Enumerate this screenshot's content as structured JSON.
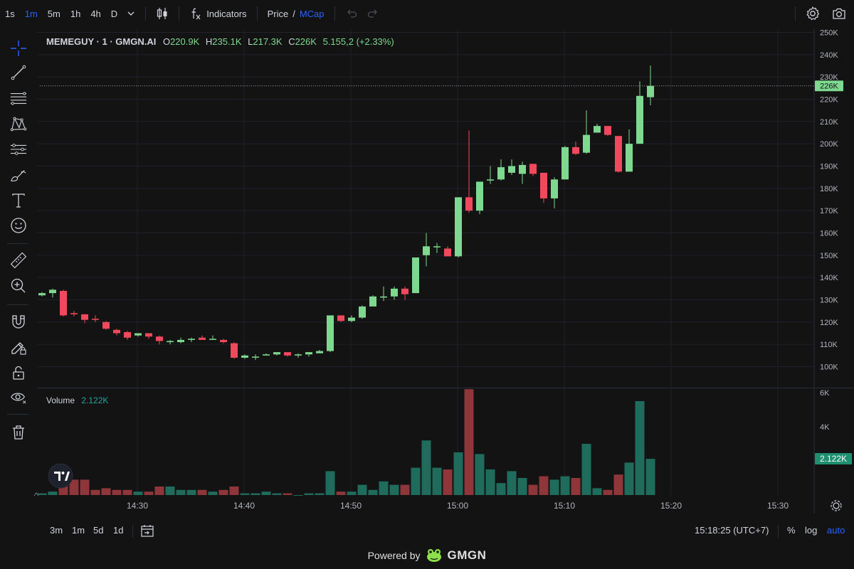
{
  "toolbar": {
    "timeframes": [
      "1s",
      "1m",
      "5m",
      "1h",
      "4h",
      "D"
    ],
    "active_timeframe": "1m",
    "indicators_label": "Indicators",
    "price_label": "Price",
    "slash": "/",
    "mcap_label": "MCap"
  },
  "legend": {
    "symbol": "MEMEGUY · 1 · GMGN.AI",
    "open_key": "O",
    "open": "220.9K",
    "high_key": "H",
    "high": "235.1K",
    "low_key": "L",
    "low": "217.3K",
    "close_key": "C",
    "close": "226K",
    "change": "5.155,2 (+2.33%)"
  },
  "volume_legend": {
    "label": "Volume",
    "value": "2.122K"
  },
  "colors": {
    "up": "#7fd88f",
    "down": "#f0485c",
    "vol_up": "#1f6b5c",
    "vol_down": "#8e3639",
    "accent": "#2962ff"
  },
  "chart_data": {
    "type": "candlestick",
    "x_ticks": [
      "14:30",
      "14:40",
      "14:50",
      "15:00",
      "15:10",
      "15:20",
      "15:30"
    ],
    "y_ticks": [
      "100K",
      "110K",
      "120K",
      "130K",
      "140K",
      "150K",
      "160K",
      "170K",
      "180K",
      "190K",
      "200K",
      "210K",
      "220K",
      "230K",
      "240K",
      "250K"
    ],
    "ylim": [
      100,
      250
    ],
    "price_label": "226K",
    "volume_ticks": [
      "4K",
      "6K"
    ],
    "volume_label": "2.122K",
    "candles": [
      {
        "t": "14:22",
        "o": 132,
        "h": 133.5,
        "l": 131.5,
        "c": 133,
        "v": 0.1
      },
      {
        "t": "14:23",
        "o": 133,
        "h": 135,
        "l": 131,
        "c": 134.5,
        "v": 0.2
      },
      {
        "t": "14:24",
        "o": 134,
        "h": 134.5,
        "l": 122.5,
        "c": 123,
        "v": 0.7
      },
      {
        "t": "14:25",
        "o": 124,
        "h": 125,
        "l": 122.5,
        "c": 123.5,
        "v": 0.9
      },
      {
        "t": "14:26",
        "o": 123.5,
        "h": 123.5,
        "l": 119.5,
        "c": 121,
        "v": 0.9
      },
      {
        "t": "14:27",
        "o": 121.5,
        "h": 123,
        "l": 120,
        "c": 121,
        "v": 0.3
      },
      {
        "t": "14:28",
        "o": 120,
        "h": 120.5,
        "l": 116.5,
        "c": 117,
        "v": 0.4
      },
      {
        "t": "14:29",
        "o": 116.5,
        "h": 117,
        "l": 114,
        "c": 115,
        "v": 0.3
      },
      {
        "t": "14:30",
        "o": 115.5,
        "h": 116,
        "l": 112,
        "c": 113,
        "v": 0.3
      },
      {
        "t": "14:31",
        "o": 114,
        "h": 115,
        "l": 113.5,
        "c": 115,
        "v": 0.2
      },
      {
        "t": "14:32",
        "o": 115,
        "h": 115,
        "l": 112.5,
        "c": 113.5,
        "v": 0.2
      },
      {
        "t": "14:33",
        "o": 113.5,
        "h": 114,
        "l": 110,
        "c": 111.5,
        "v": 0.5
      },
      {
        "t": "14:34",
        "o": 111,
        "h": 112,
        "l": 110,
        "c": 111.5,
        "v": 0.5
      },
      {
        "t": "14:35",
        "o": 111,
        "h": 113,
        "l": 110.5,
        "c": 112,
        "v": 0.3
      },
      {
        "t": "14:36",
        "o": 112,
        "h": 113,
        "l": 111,
        "c": 112.5,
        "v": 0.3
      },
      {
        "t": "14:37",
        "o": 113,
        "h": 114,
        "l": 112,
        "c": 112,
        "v": 0.3
      },
      {
        "t": "14:38",
        "o": 112.5,
        "h": 114,
        "l": 112,
        "c": 112.5,
        "v": 0.2
      },
      {
        "t": "14:39",
        "o": 112,
        "h": 112.5,
        "l": 110.5,
        "c": 111,
        "v": 0.3
      },
      {
        "t": "14:40",
        "o": 110.5,
        "h": 111,
        "l": 103.5,
        "c": 104,
        "v": 0.5
      },
      {
        "t": "14:41",
        "o": 104,
        "h": 105.5,
        "l": 103.5,
        "c": 105,
        "v": 0.1
      },
      {
        "t": "14:42",
        "o": 104.5,
        "h": 105.5,
        "l": 103,
        "c": 104.5,
        "v": 0.1
      },
      {
        "t": "14:43",
        "o": 105,
        "h": 106,
        "l": 105,
        "c": 105.5,
        "v": 0.2
      },
      {
        "t": "14:44",
        "o": 105.5,
        "h": 106.5,
        "l": 105,
        "c": 106.5,
        "v": 0.1
      },
      {
        "t": "14:45",
        "o": 106.5,
        "h": 106.5,
        "l": 104.5,
        "c": 105,
        "v": 0.1
      },
      {
        "t": "14:46",
        "o": 105,
        "h": 106,
        "l": 104,
        "c": 105.5,
        "v": 0.0
      },
      {
        "t": "14:47",
        "o": 105.5,
        "h": 106.5,
        "l": 104.5,
        "c": 106.5,
        "v": 0.1
      },
      {
        "t": "14:48",
        "o": 106,
        "h": 107.5,
        "l": 106,
        "c": 107,
        "v": 0.1
      },
      {
        "t": "14:49",
        "o": 107,
        "h": 123,
        "l": 106.5,
        "c": 123,
        "v": 1.4
      },
      {
        "t": "14:50",
        "o": 123,
        "h": 123,
        "l": 120,
        "c": 120.5,
        "v": 0.2
      },
      {
        "t": "14:51",
        "o": 120.5,
        "h": 123,
        "l": 120,
        "c": 122,
        "v": 0.2
      },
      {
        "t": "14:52",
        "o": 122,
        "h": 127.5,
        "l": 121.5,
        "c": 127,
        "v": 0.6
      },
      {
        "t": "14:53",
        "o": 127,
        "h": 132,
        "l": 127,
        "c": 131.5,
        "v": 0.3
      },
      {
        "t": "14:54",
        "o": 131,
        "h": 136,
        "l": 129.5,
        "c": 131.5,
        "v": 0.8
      },
      {
        "t": "14:55",
        "o": 131.5,
        "h": 136,
        "l": 130,
        "c": 135,
        "v": 0.6
      },
      {
        "t": "14:56",
        "o": 135,
        "h": 136,
        "l": 130,
        "c": 132.5,
        "v": 0.6
      },
      {
        "t": "14:57",
        "o": 133,
        "h": 149,
        "l": 133,
        "c": 149,
        "v": 1.6
      },
      {
        "t": "14:58",
        "o": 150,
        "h": 160,
        "l": 145,
        "c": 154,
        "v": 3.2
      },
      {
        "t": "14:59",
        "o": 154,
        "h": 155.5,
        "l": 151,
        "c": 154,
        "v": 1.6
      },
      {
        "t": "15:00",
        "o": 153,
        "h": 154,
        "l": 149.5,
        "c": 149.5,
        "v": 1.5
      },
      {
        "t": "15:01",
        "o": 149.5,
        "h": 176,
        "l": 149,
        "c": 176,
        "v": 2.5
      },
      {
        "t": "15:02",
        "o": 176,
        "h": 206,
        "l": 169,
        "c": 170,
        "v": 6.2
      },
      {
        "t": "15:03",
        "o": 170,
        "h": 183,
        "l": 168.5,
        "c": 183,
        "v": 2.4
      },
      {
        "t": "15:04",
        "o": 183.5,
        "h": 190,
        "l": 182,
        "c": 184,
        "v": 1.5
      },
      {
        "t": "15:05",
        "o": 184,
        "h": 193,
        "l": 183.5,
        "c": 189.5,
        "v": 0.7
      },
      {
        "t": "15:06",
        "o": 187,
        "h": 193,
        "l": 186,
        "c": 190,
        "v": 1.4
      },
      {
        "t": "15:07",
        "o": 186.5,
        "h": 192,
        "l": 182,
        "c": 190.5,
        "v": 1.0
      },
      {
        "t": "15:08",
        "o": 191,
        "h": 191,
        "l": 185.5,
        "c": 186.5,
        "v": 0.6
      },
      {
        "t": "15:09",
        "o": 187,
        "h": 187,
        "l": 173.5,
        "c": 175.5,
        "v": 1.1
      },
      {
        "t": "15:10",
        "o": 175.5,
        "h": 185,
        "l": 171,
        "c": 184,
        "v": 0.9
      },
      {
        "t": "15:11",
        "o": 184,
        "h": 199,
        "l": 184,
        "c": 198.5,
        "v": 1.1
      },
      {
        "t": "15:12",
        "o": 198.5,
        "h": 201,
        "l": 195,
        "c": 195.5,
        "v": 1.0
      },
      {
        "t": "15:13",
        "o": 196,
        "h": 215,
        "l": 195.5,
        "c": 204,
        "v": 3.0
      },
      {
        "t": "15:14",
        "o": 205,
        "h": 209,
        "l": 205,
        "c": 208,
        "v": 0.4
      },
      {
        "t": "15:15",
        "o": 208,
        "h": 208,
        "l": 203.5,
        "c": 204,
        "v": 0.3
      },
      {
        "t": "15:16",
        "o": 203.5,
        "h": 203.5,
        "l": 187,
        "c": 187.5,
        "v": 1.2
      },
      {
        "t": "15:17",
        "o": 187.5,
        "h": 206.5,
        "l": 187.5,
        "c": 200,
        "v": 1.9
      },
      {
        "t": "15:18",
        "o": 200,
        "h": 228,
        "l": 200,
        "c": 221.5,
        "v": 5.5
      },
      {
        "t": "15:18b",
        "o": 220.9,
        "h": 235.1,
        "l": 217.3,
        "c": 226,
        "v": 2.122
      }
    ]
  },
  "bottom": {
    "ranges": [
      "3m",
      "1m",
      "5d",
      "1d"
    ],
    "time_readout": "15:18:25 (UTC+7)",
    "percent_label": "%",
    "log_label": "log",
    "auto_label": "auto"
  },
  "footer": {
    "powered_by": "Powered by",
    "brand": "GMGN"
  },
  "icons": [
    "crosshair-icon",
    "trend-line-icon",
    "fib-retracement-icon",
    "pattern-icon",
    "forecast-icon",
    "brush-icon",
    "text-icon",
    "emoji-icon",
    "ruler-icon",
    "zoom-in-icon",
    "magnet-icon",
    "lock-drawing-icon",
    "lock-icon",
    "eye-icon",
    "trash-icon",
    "candle-type-icon",
    "fx-icon",
    "undo-icon",
    "redo-icon",
    "settings-icon",
    "camera-icon",
    "calendar-range-icon",
    "tradingview-logo",
    "gmgn-logo"
  ]
}
